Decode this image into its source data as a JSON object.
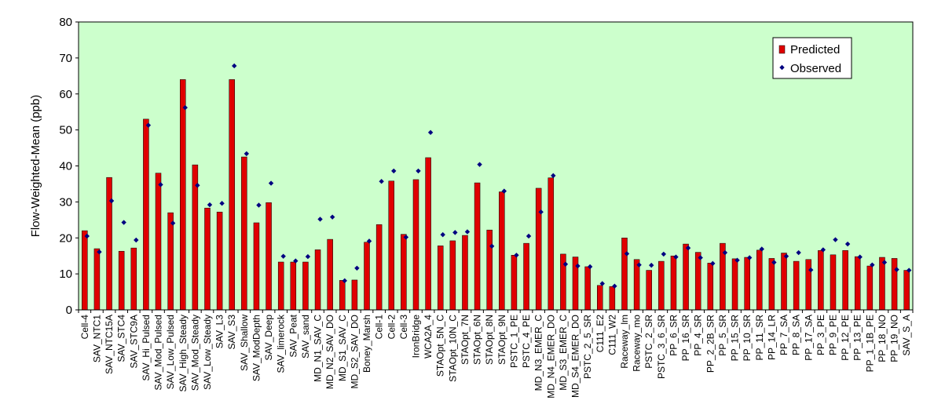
{
  "chart_data": {
    "type": "bar",
    "title": "",
    "xlabel": "",
    "ylabel": "Flow-Weighted-Mean (ppb)",
    "ylim": [
      0,
      80
    ],
    "yticks": [
      0,
      10,
      20,
      30,
      40,
      50,
      60,
      70,
      80
    ],
    "grid": false,
    "legend_position": "top-right",
    "colors": {
      "plot_bg": "#ccffcc",
      "bar": "#e00000",
      "marker": "#000080"
    },
    "categories": [
      "Cell-4",
      "SAV_NTC1",
      "SAV_NTC15A",
      "SAV_STC4",
      "SAV_STC9A",
      "SAV_Hi_Pulsed",
      "SAV_Mod_Pulsed",
      "SAV_Low_Pulsed",
      "SAV_High_Steady",
      "SAV_Mod_Steady",
      "SAV_Low_Steady",
      "SAV_L3",
      "SAV_S3",
      "SAV_Shallow",
      "SAV_ModDepth",
      "SAV_Deep",
      "SAV_limerock",
      "SAV_Peat",
      "SAV_sand",
      "MD_N1_SAV_C",
      "MD_N2_SAV_DO",
      "MD_S1_SAV_C",
      "MD_S2_SAV_DO",
      "Boney_Marsh",
      "Cell-1",
      "Cell-2",
      "Cell-3",
      "IronBridge",
      "WCA2A_4",
      "STAOpt_5N_C",
      "STAOpt_10N_C",
      "STAOpt_7N",
      "STAOpt_6N",
      "STAOpt_8N",
      "STAOpt_9N",
      "PSTC_1_PE",
      "PSTC_4_PE",
      "MD_N3_EMER_C",
      "MD_N4_EMER_DO",
      "MD_S3_EMER_C",
      "MD_S4_EMER_DO",
      "PSTC_2_5_SR",
      "C111_E2",
      "C111_W2",
      "Raceway_lm",
      "Raceway_mo",
      "PSTC_2_SR",
      "PSTC_3_6_SR",
      "PP_6_SR",
      "PP_16_SR",
      "PP_4_SR",
      "PP_2_2B_SR",
      "PP_5_SR",
      "PP_15_SR",
      "PP_10_SR",
      "PP_11_SR",
      "PP_14_LR",
      "PP_7_SA",
      "PP_8_SA",
      "PP_17_SA",
      "PP_3_PE",
      "PP_9_PE",
      "PP_12_PE",
      "PP_13_PE",
      "PP_1_1B_PE",
      "PP_18_NO",
      "PP_19_NO",
      "SAV_S_A"
    ],
    "series": [
      {
        "name": "Predicted",
        "kind": "bar",
        "values": [
          22.0,
          17.0,
          36.8,
          16.3,
          17.2,
          53.0,
          38.0,
          27.0,
          64.0,
          40.3,
          28.3,
          27.2,
          64.0,
          42.5,
          24.2,
          29.8,
          13.3,
          13.3,
          13.3,
          16.7,
          19.6,
          8.2,
          8.3,
          18.8,
          23.7,
          35.8,
          21.0,
          36.2,
          42.3,
          17.8,
          19.2,
          20.7,
          35.3,
          22.2,
          32.8,
          15.2,
          18.5,
          33.8,
          36.7,
          15.5,
          14.7,
          12.0,
          6.8,
          6.5,
          20.0,
          14.0,
          11.0,
          13.5,
          15.0,
          18.3,
          16.0,
          13.0,
          18.5,
          14.2,
          14.6,
          16.6,
          14.3,
          15.8,
          13.5,
          14.0,
          16.5,
          15.3,
          16.5,
          14.8,
          12.2,
          14.6,
          14.3,
          11.0
        ]
      },
      {
        "name": "Observed",
        "kind": "scatter",
        "values": [
          20.5,
          16.1,
          30.3,
          24.3,
          19.4,
          51.3,
          34.8,
          24.1,
          56.2,
          34.6,
          29.2,
          29.6,
          67.8,
          43.4,
          29.1,
          35.2,
          14.9,
          13.6,
          14.8,
          25.2,
          25.8,
          8.1,
          11.6,
          19.1,
          35.7,
          38.6,
          20.2,
          38.6,
          49.3,
          20.9,
          21.5,
          21.7,
          40.4,
          17.7,
          33.0,
          15.2,
          20.5,
          27.2,
          37.3,
          12.7,
          12.2,
          12.0,
          7.3,
          6.6,
          15.6,
          12.5,
          12.4,
          15.5,
          14.7,
          17.2,
          14.5,
          12.9,
          15.9,
          13.8,
          14.5,
          16.9,
          13.2,
          14.9,
          15.9,
          11.1,
          16.7,
          19.5,
          18.3,
          14.7,
          12.5,
          13.2,
          11.2,
          11.0
        ]
      }
    ]
  }
}
